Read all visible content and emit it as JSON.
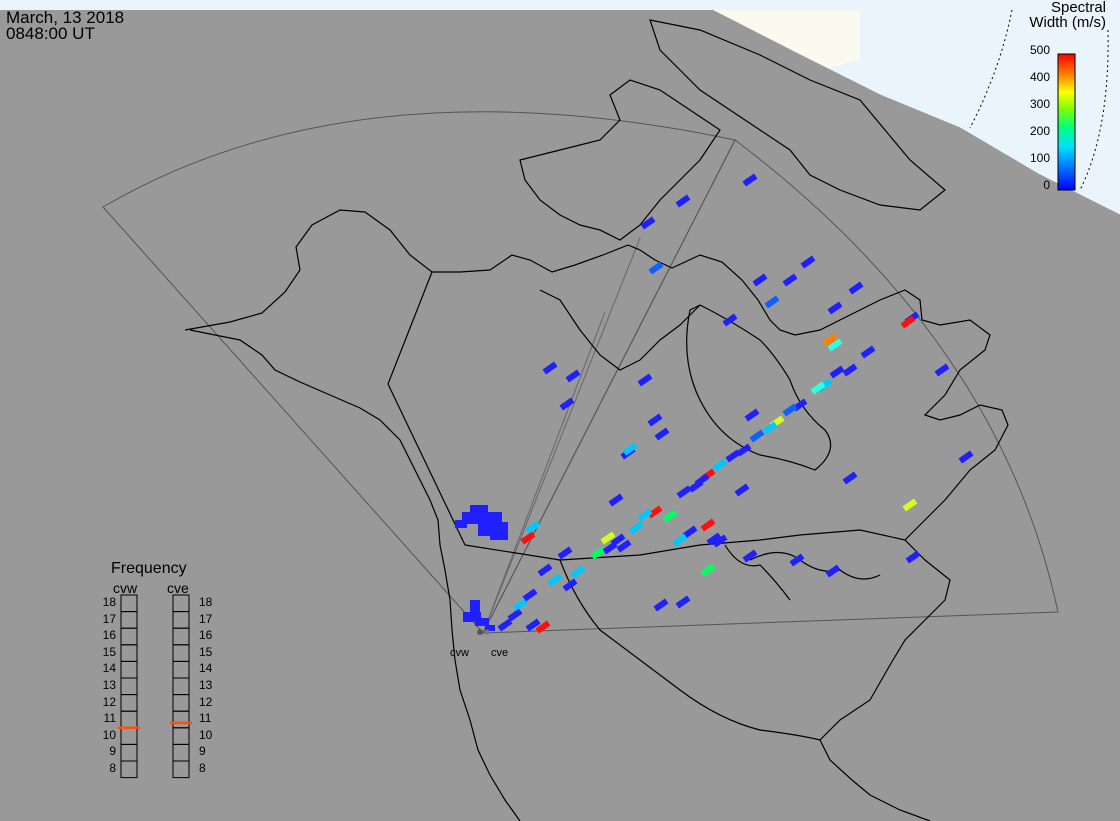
{
  "timestamp": {
    "date": "March, 13 2018",
    "time": "0848:00 UT"
  },
  "colorbar": {
    "title_line1": "Spectral",
    "title_line2": "Width (m/s)",
    "ticks": [
      "500",
      "400",
      "300",
      "200",
      "100",
      "0"
    ],
    "range": [
      0,
      500
    ],
    "colors": [
      "#0000ff",
      "#0080ff",
      "#00e0ff",
      "#00ff80",
      "#80ff00",
      "#ffff00",
      "#ff8000",
      "#ff0000"
    ]
  },
  "frequency_panel": {
    "title": "Frequency",
    "radars": [
      {
        "name": "cvw",
        "value_mhz": 10.5
      },
      {
        "name": "cve",
        "value_mhz": 10.8
      }
    ],
    "scale": [
      "18",
      "17",
      "16",
      "15",
      "14",
      "13",
      "12",
      "11",
      "10",
      "9",
      "8"
    ],
    "marker_color": "#ff5010"
  },
  "radar_labels": {
    "west": "cvw",
    "east": "cve"
  },
  "colors": {
    "background": "#999999",
    "night_shade": "#999999",
    "day_side": "#eaf4fb",
    "day_land": "#fafaf0",
    "coastline": "#000000",
    "fov_outline": "#555555"
  }
}
